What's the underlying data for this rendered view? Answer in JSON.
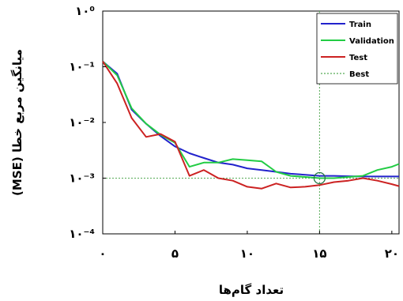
{
  "chart_data": {
    "type": "line",
    "xlabel": "تعداد گام‌ها",
    "ylabel": "میانگین مربع خطا (MSE)",
    "xlim": [
      0,
      20.5
    ],
    "xticks": [
      0,
      5,
      10,
      15,
      20
    ],
    "xtick_labels": [
      "۰",
      "۵",
      "۱۰",
      "۱۵",
      "۲۰"
    ],
    "yscale": "log",
    "ylim": [
      0.0001,
      1
    ],
    "yticks": [
      1,
      0.1,
      0.01,
      0.001,
      0.0001
    ],
    "ytick_labels": [
      "۱۰⁰",
      "۱۰⁻¹",
      "۱۰⁻²",
      "۱۰⁻³",
      "۱۰⁻⁴"
    ],
    "grid": false,
    "legend_position": "top-right",
    "series": [
      {
        "name": "Train",
        "color": "#2222cc",
        "x": [
          0,
          1,
          2,
          3,
          4,
          5,
          6,
          7,
          8,
          9,
          10,
          11,
          12,
          13,
          14,
          15,
          16,
          17,
          18,
          19,
          20,
          20.5
        ],
        "y": [
          0.125,
          0.075,
          0.017,
          0.0095,
          0.0057,
          0.0037,
          0.0028,
          0.0023,
          0.0019,
          0.00175,
          0.0015,
          0.0014,
          0.0013,
          0.0012,
          0.00115,
          0.0011,
          0.0011,
          0.00108,
          0.00107,
          0.00107,
          0.00107,
          0.00107
        ]
      },
      {
        "name": "Validation",
        "color": "#22cc44",
        "x": [
          0,
          1,
          2,
          3,
          4,
          5,
          6,
          7,
          8,
          9,
          10,
          11,
          12,
          13,
          14,
          15,
          16,
          17,
          18,
          19,
          20,
          20.5
        ],
        "y": [
          0.125,
          0.07,
          0.018,
          0.0095,
          0.006,
          0.0043,
          0.0016,
          0.0019,
          0.0019,
          0.0022,
          0.0021,
          0.002,
          0.0013,
          0.0011,
          0.00105,
          0.001,
          0.001,
          0.00105,
          0.0011,
          0.0014,
          0.0016,
          0.0018
        ]
      },
      {
        "name": "Test",
        "color": "#cc2222",
        "x": [
          0,
          1,
          2,
          3,
          4,
          5,
          6,
          7,
          8,
          9,
          10,
          11,
          12,
          13,
          14,
          15,
          16,
          17,
          18,
          19,
          20,
          20.5
        ],
        "y": [
          0.125,
          0.05,
          0.012,
          0.0055,
          0.0062,
          0.0045,
          0.0011,
          0.0014,
          0.001,
          0.0009,
          0.0007,
          0.00065,
          0.0008,
          0.00068,
          0.0007,
          0.00075,
          0.00085,
          0.0009,
          0.001,
          0.0009,
          0.00078,
          0.00072
        ]
      },
      {
        "name": "Best",
        "color": "#55aa55",
        "style": "dotted"
      }
    ],
    "best_point": {
      "x": 15,
      "y": 0.001
    }
  }
}
